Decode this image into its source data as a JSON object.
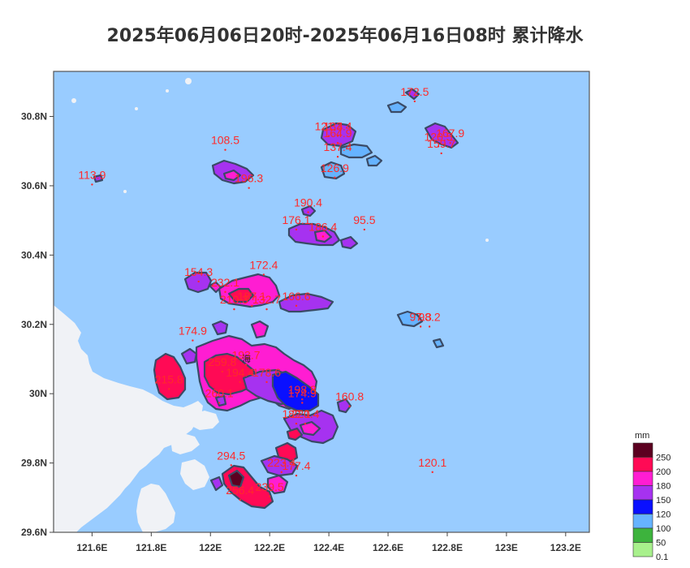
{
  "title": "2025年06月06日20时-2025年06月16日08时 累计降水",
  "axes": {
    "x_ticks": [
      "121.6E",
      "121.8E",
      "122E",
      "122.2E",
      "122.4E",
      "122.6E",
      "122.8E",
      "123E",
      "123.2E"
    ],
    "y_ticks": [
      "30.8N",
      "30.6N",
      "30.4N",
      "30.2N",
      "30N",
      "29.8N",
      "29.6N"
    ]
  },
  "map_view": {
    "lon_min": 121.47,
    "lon_max": 123.28,
    "lat_min": 29.6,
    "lat_max": 30.93
  },
  "colors": {
    "sea": "#99ccff",
    "land": "#f0f2f6",
    "label": "#ff2a2a",
    "outline": "#3a4a66"
  },
  "place_label": "海",
  "stations": [
    {
      "value": "172.5",
      "lon": 122.69,
      "lat": 30.86
    },
    {
      "value": "121.4",
      "lon": 122.4,
      "lat": 30.76
    },
    {
      "value": "133.4",
      "lon": 122.43,
      "lat": 30.76
    },
    {
      "value": "164.9",
      "lon": 122.43,
      "lat": 30.74
    },
    {
      "value": "137.4",
      "lon": 122.43,
      "lat": 30.7
    },
    {
      "value": "120.5",
      "lon": 122.77,
      "lat": 30.73
    },
    {
      "value": "167.9",
      "lon": 122.81,
      "lat": 30.74
    },
    {
      "value": "159.7",
      "lon": 122.78,
      "lat": 30.71
    },
    {
      "value": "108.5",
      "lon": 122.05,
      "lat": 30.72
    },
    {
      "value": "113.9",
      "lon": 121.6,
      "lat": 30.62
    },
    {
      "value": "196.3",
      "lon": 122.13,
      "lat": 30.61
    },
    {
      "value": "126.9",
      "lon": 122.42,
      "lat": 30.64
    },
    {
      "value": "190.4",
      "lon": 122.33,
      "lat": 30.54
    },
    {
      "value": "95.5",
      "lon": 122.52,
      "lat": 30.49
    },
    {
      "value": "176.1",
      "lon": 122.29,
      "lat": 30.49
    },
    {
      "value": "186.4",
      "lon": 122.38,
      "lat": 30.47
    },
    {
      "value": "154.3",
      "lon": 121.96,
      "lat": 30.34
    },
    {
      "value": "232.1",
      "lon": 122.05,
      "lat": 30.31
    },
    {
      "value": "172.4",
      "lon": 122.18,
      "lat": 30.36
    },
    {
      "value": "166.6",
      "lon": 122.29,
      "lat": 30.27
    },
    {
      "value": "210.3",
      "lon": 122.08,
      "lat": 30.26
    },
    {
      "value": "187.1",
      "lon": 122.14,
      "lat": 30.27
    },
    {
      "value": "132.7",
      "lon": 122.19,
      "lat": 30.26
    },
    {
      "value": "97.3",
      "lon": 122.71,
      "lat": 30.21
    },
    {
      "value": "98.2",
      "lon": 122.74,
      "lat": 30.21
    },
    {
      "value": "174.9",
      "lon": 121.94,
      "lat": 30.17
    },
    {
      "value": "193.7",
      "lon": 122.12,
      "lat": 30.1
    },
    {
      "value": "259.8",
      "lon": 122.04,
      "lat": 30.08
    },
    {
      "value": "194.4",
      "lon": 122.1,
      "lat": 30.05
    },
    {
      "value": "178.6",
      "lon": 122.19,
      "lat": 30.05
    },
    {
      "value": "215.8",
      "lon": 121.86,
      "lat": 30.03
    },
    {
      "value": "260.1",
      "lon": 122.03,
      "lat": 29.99
    },
    {
      "value": "198.8",
      "lon": 122.31,
      "lat": 30.0
    },
    {
      "value": "174.9",
      "lon": 122.31,
      "lat": 29.99
    },
    {
      "value": "160.8",
      "lon": 122.47,
      "lat": 29.98
    },
    {
      "value": "182.1",
      "lon": 122.29,
      "lat": 29.93
    },
    {
      "value": "220.4",
      "lon": 122.32,
      "lat": 29.93
    },
    {
      "value": "294.5",
      "lon": 122.07,
      "lat": 29.81
    },
    {
      "value": "223.4",
      "lon": 122.24,
      "lat": 29.79
    },
    {
      "value": "177.4",
      "lon": 122.29,
      "lat": 29.78
    },
    {
      "value": "120.1",
      "lon": 122.75,
      "lat": 29.79
    },
    {
      "value": "256.4",
      "lon": 122.1,
      "lat": 29.71
    },
    {
      "value": "239.5",
      "lon": 122.2,
      "lat": 29.72
    }
  ],
  "legend": {
    "unit": "mm",
    "levels": [
      {
        "label": "250",
        "color": "#5c0020"
      },
      {
        "label": "200",
        "color": "#ff0a55"
      },
      {
        "label": "180",
        "color": "#ff1dd2"
      },
      {
        "label": "150",
        "color": "#a632f0"
      },
      {
        "label": "120",
        "color": "#0a10ff"
      },
      {
        "label": "100",
        "color": "#66b3ff"
      },
      {
        "label": "50",
        "color": "#3db33d"
      },
      {
        "label": "0.1",
        "color": "#a8f08c"
      }
    ]
  }
}
